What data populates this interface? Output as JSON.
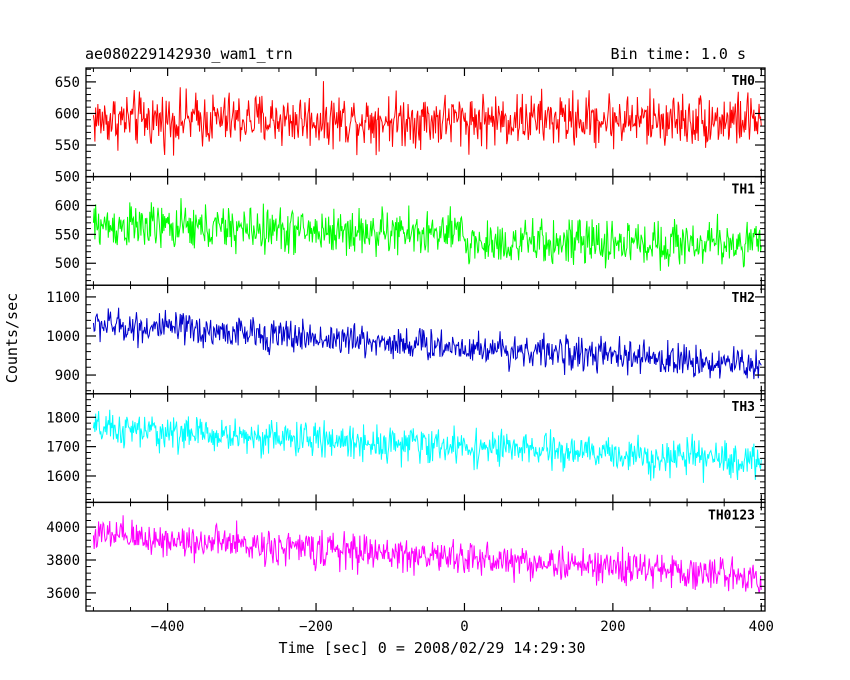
{
  "header": {
    "title": "ae080229142930_wam1_trn",
    "bin_time": "Bin time: 1.0 s"
  },
  "chart_data": {
    "type": "line",
    "title": "ae080229142930_wam1_trn",
    "xlabel": "Time [sec] 0 = 2008/02/29 14:29:30",
    "ylabel": "Counts/sec",
    "xlim": [
      -510,
      405
    ],
    "xticks": [
      -400,
      -200,
      0,
      200,
      400
    ],
    "x_start": -500,
    "x_end": 400,
    "bin": 1.0,
    "series": [
      {
        "name": "TH0",
        "color": "#ff0000",
        "ylim": [
          500,
          672
        ],
        "yticks": [
          500,
          550,
          600,
          650
        ],
        "trend": [
          [
            -500,
            590
          ],
          [
            400,
            590
          ]
        ],
        "noise": 30
      },
      {
        "name": "TH1",
        "color": "#00ff00",
        "ylim": [
          462,
          650
        ],
        "yticks": [
          500,
          550,
          600
        ],
        "trend": [
          [
            -500,
            565
          ],
          [
            0,
            550
          ],
          [
            0,
            535
          ],
          [
            400,
            535
          ]
        ],
        "noise": 28
      },
      {
        "name": "TH2",
        "color": "#0000cc",
        "ylim": [
          852,
          1130
        ],
        "yticks": [
          900,
          1000,
          1100
        ],
        "trend": [
          [
            -500,
            1030
          ],
          [
            400,
            925
          ]
        ],
        "noise": 30
      },
      {
        "name": "TH3",
        "color": "#00ffff",
        "ylim": [
          1510,
          1880
        ],
        "yticks": [
          1600,
          1700,
          1800
        ],
        "trend": [
          [
            -500,
            1760
          ],
          [
            400,
            1650
          ]
        ],
        "noise": 42
      },
      {
        "name": "TH0123",
        "color": "#ff00ff",
        "ylim": [
          3490,
          4150
        ],
        "yticks": [
          3600,
          3800,
          4000
        ],
        "trend": [
          [
            -500,
            3950
          ],
          [
            400,
            3700
          ]
        ],
        "noise": 75
      }
    ]
  }
}
